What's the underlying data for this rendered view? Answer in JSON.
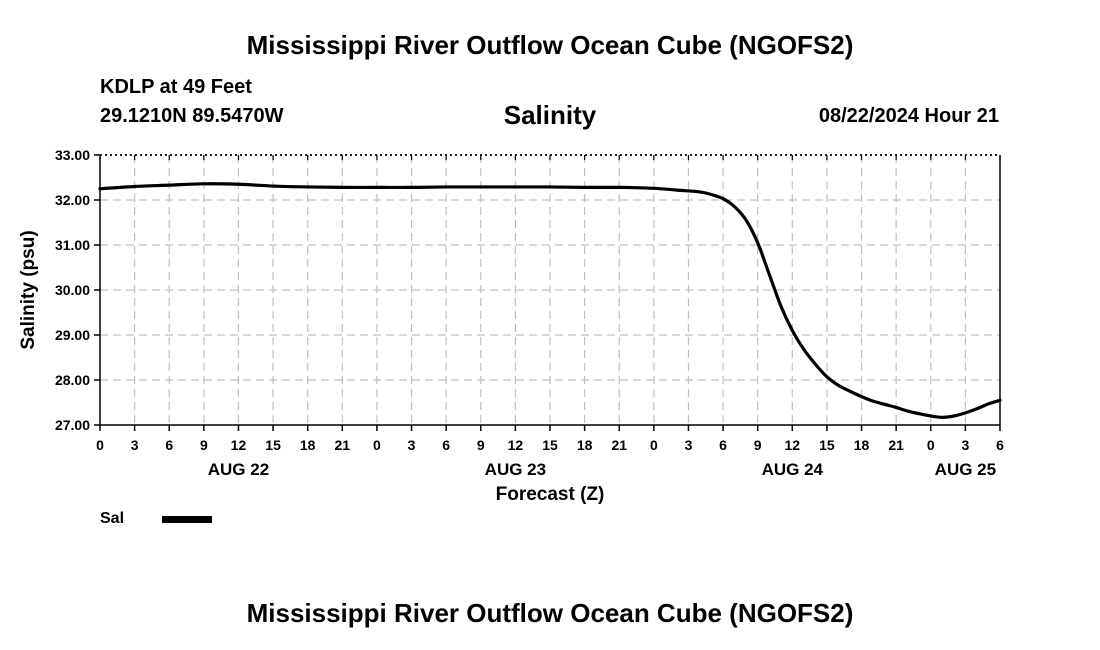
{
  "header": {
    "title": "Mississippi River Outflow Ocean Cube (NGOFS2)",
    "station": "KDLP at 49 Feet",
    "coordinates": "29.1210N  89.5470W",
    "parameter": "Salinity",
    "datetime": "08/22/2024 Hour 21"
  },
  "footer": {
    "title": "Mississippi River Outflow Ocean Cube (NGOFS2)"
  },
  "legend": {
    "label": "Sal"
  },
  "colors": {
    "line": "#000000",
    "grid": "#c0c0c0"
  },
  "chart_data": {
    "type": "line",
    "title": "Salinity",
    "xlabel": "Forecast (Z)",
    "ylabel": "Salinity (psu)",
    "ylim": [
      27,
      33
    ],
    "yticks": [
      "27.00",
      "28.00",
      "29.00",
      "30.00",
      "31.00",
      "32.00",
      "33.00"
    ],
    "xlim": [
      0,
      78
    ],
    "xticks": [
      "0",
      "3",
      "6",
      "9",
      "12",
      "15",
      "18",
      "21",
      "0",
      "3",
      "6",
      "9",
      "12",
      "15",
      "18",
      "21",
      "0",
      "3",
      "6",
      "9",
      "12",
      "15",
      "18",
      "21",
      "0",
      "3",
      "6"
    ],
    "date_labels": [
      {
        "label": "AUG 22",
        "hour": 12
      },
      {
        "label": "AUG 23",
        "hour": 36
      },
      {
        "label": "AUG 24",
        "hour": 60
      },
      {
        "label": "AUG 25",
        "hour": 75
      }
    ],
    "grid": true,
    "series": [
      {
        "name": "Sal",
        "x": [
          0,
          3,
          6,
          9,
          12,
          15,
          18,
          21,
          24,
          27,
          30,
          33,
          36,
          39,
          42,
          45,
          48,
          50,
          52,
          53,
          54,
          55,
          56,
          57,
          58,
          59,
          60,
          61,
          62,
          63,
          64,
          65,
          66,
          67,
          68,
          69,
          70,
          71,
          72,
          73,
          74,
          75,
          76,
          77,
          78
        ],
        "values": [
          32.25,
          32.3,
          32.33,
          32.36,
          32.35,
          32.31,
          32.29,
          32.28,
          32.28,
          32.28,
          32.29,
          32.29,
          32.29,
          32.29,
          32.28,
          32.28,
          32.26,
          32.22,
          32.18,
          32.12,
          32.03,
          31.85,
          31.55,
          31.05,
          30.35,
          29.65,
          29.1,
          28.68,
          28.35,
          28.07,
          27.88,
          27.75,
          27.63,
          27.53,
          27.46,
          27.39,
          27.31,
          27.25,
          27.2,
          27.17,
          27.2,
          27.27,
          27.36,
          27.47,
          27.55
        ]
      }
    ]
  }
}
